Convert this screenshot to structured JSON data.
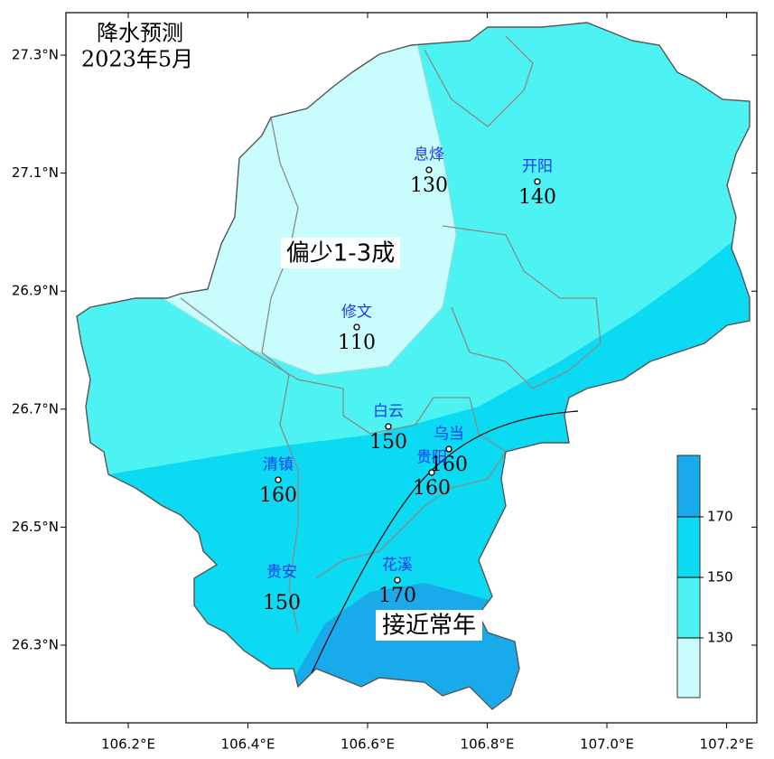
{
  "title": {
    "lines": [
      "降水预测",
      "2023年5月"
    ]
  },
  "axes": {
    "x_ticks": [
      {
        "value": 106.2,
        "label": "106.2°E"
      },
      {
        "value": 106.4,
        "label": "106.4°E"
      },
      {
        "value": 106.6,
        "label": "106.6°E"
      },
      {
        "value": 106.8,
        "label": "106.8°E"
      },
      {
        "value": 107.0,
        "label": "107.0°E"
      },
      {
        "value": 107.2,
        "label": "107.2°E"
      }
    ],
    "y_ticks": [
      {
        "value": 27.3,
        "label": "27.3°N"
      },
      {
        "value": 27.1,
        "label": "27.1°N"
      },
      {
        "value": 26.9,
        "label": "26.9°N"
      },
      {
        "value": 26.7,
        "label": "26.7°N"
      },
      {
        "value": 26.5,
        "label": "26.5°N"
      },
      {
        "value": 26.3,
        "label": "26.3°N"
      }
    ]
  },
  "stations": [
    {
      "name": "息烽",
      "value": 130
    },
    {
      "name": "开阳",
      "value": 140
    },
    {
      "name": "修文",
      "value": 110
    },
    {
      "name": "白云",
      "value": 150
    },
    {
      "name": "乌当",
      "value": 160
    },
    {
      "name": "贵阳",
      "value": 160
    },
    {
      "name": "清镇",
      "value": 160
    },
    {
      "name": "花溪",
      "value": 170
    },
    {
      "name": "贵安",
      "value": 150
    }
  ],
  "region_labels": [
    "偏少1-3成",
    "接近常年"
  ],
  "legend": {
    "ticks": [
      170,
      150,
      130
    ]
  }
}
